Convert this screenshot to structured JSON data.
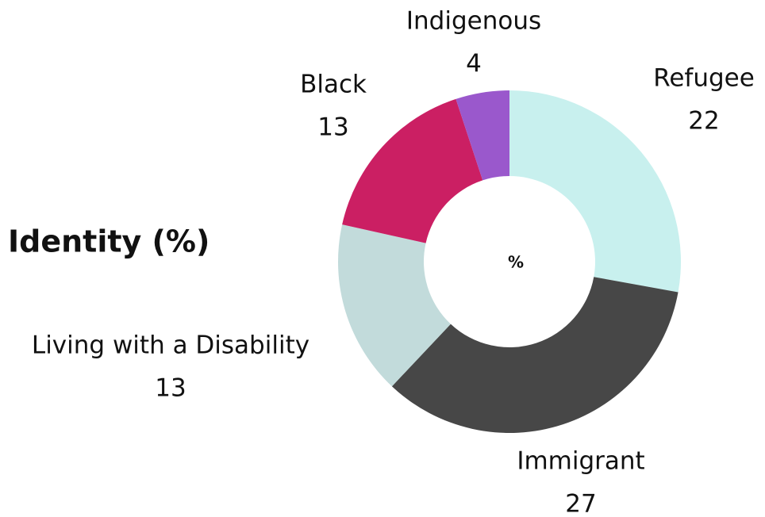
{
  "chart_data": {
    "type": "donut",
    "title": "Identity (%)",
    "center_label": "%",
    "categories": [
      "Refugee",
      "Immigrant",
      "Living with a Disability",
      "Black",
      "Indigenous"
    ],
    "values": [
      22,
      27,
      13,
      13,
      4
    ],
    "colors": [
      "#c8f0ee",
      "#474747",
      "#c2dbdb",
      "#cb1f63",
      "#9a58cc"
    ]
  }
}
